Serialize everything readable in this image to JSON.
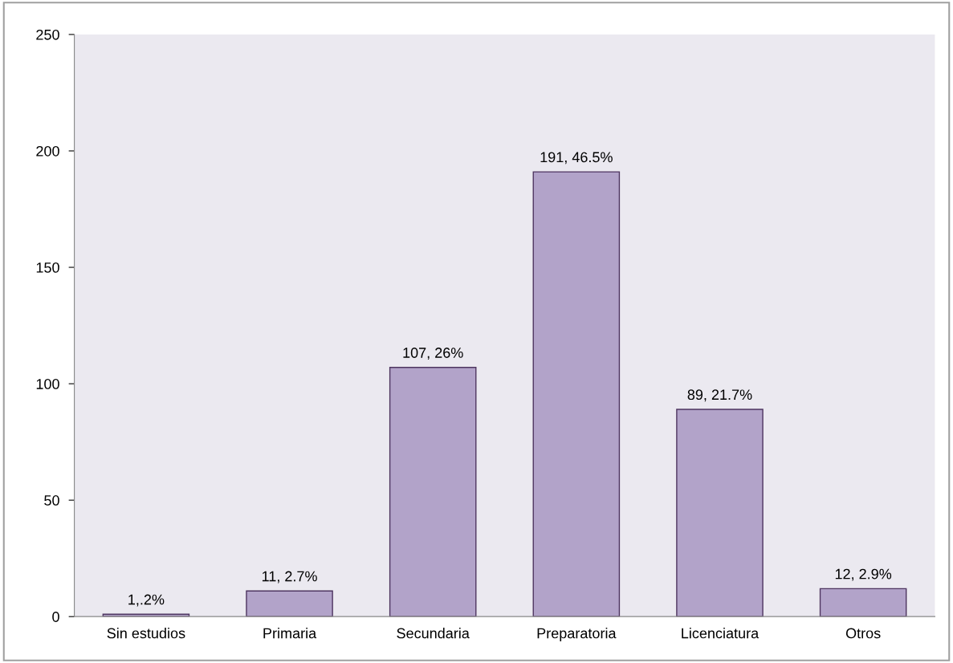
{
  "chart_data": {
    "type": "bar",
    "categories": [
      "Sin estudios",
      "Primaria",
      "Secundaria",
      "Preparatoria",
      "Licenciatura",
      "Otros"
    ],
    "values": [
      1,
      11,
      107,
      191,
      89,
      12
    ],
    "value_labels": [
      "1,.2%",
      "11, 2.7%",
      "107, 26%",
      "191, 46.5%",
      "89, 21.7%",
      "12, 2.9%"
    ],
    "color": "#b2a3c9",
    "ylim": [
      0,
      250
    ],
    "yticks": [
      0,
      50,
      100,
      150,
      200,
      250
    ],
    "grid": false,
    "legend": false
  }
}
